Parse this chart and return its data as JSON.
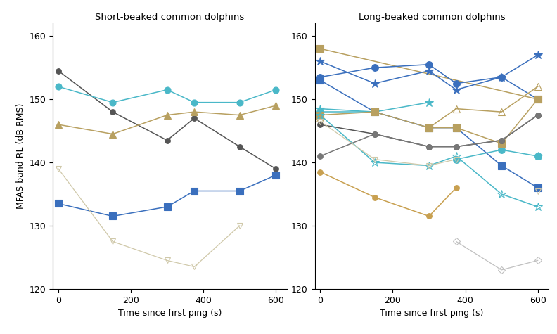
{
  "left_title": "Short-beaked common dolphins",
  "right_title": "Long-beaked common dolphins",
  "xlabel": "Time since first ping (s)",
  "ylabel": "MFAS band RL (dB RMS)",
  "ylim": [
    120,
    162
  ],
  "yticks": [
    120,
    130,
    140,
    150,
    160
  ],
  "xlim": [
    -15,
    630
  ],
  "xticks": [
    0,
    200,
    400,
    600
  ],
  "left_series": [
    {
      "x": [
        0,
        150,
        300,
        375,
        500,
        600
      ],
      "y": [
        154.5,
        148.0,
        143.5,
        147.0,
        142.5,
        139.0
      ],
      "color": "#555555",
      "marker": "o",
      "markersize": 5.5,
      "linewidth": 1.1
    },
    {
      "x": [
        0,
        150,
        300,
        375,
        500,
        600
      ],
      "y": [
        152.0,
        149.5,
        151.5,
        149.5,
        149.5,
        151.5
      ],
      "color": "#4ab8c8",
      "marker": "o",
      "markersize": 6.5,
      "linewidth": 1.1
    },
    {
      "x": [
        0,
        150,
        300,
        375,
        500,
        600
      ],
      "y": [
        146.0,
        144.5,
        147.5,
        148.0,
        147.5,
        149.0
      ],
      "color": "#b8a060",
      "marker": "^",
      "markersize": 6.5,
      "linewidth": 1.1
    },
    {
      "x": [
        0,
        150,
        300,
        375,
        500,
        600
      ],
      "y": [
        133.5,
        131.5,
        133.0,
        135.5,
        135.5,
        138.0
      ],
      "color": "#3a6fbd",
      "marker": "s",
      "markersize": 6.5,
      "linewidth": 1.1,
      "filled": true
    },
    {
      "x": [
        0,
        150,
        300,
        375,
        500,
        600
      ],
      "y": [
        139.0,
        127.5,
        124.5,
        123.5,
        130.0,
        null
      ],
      "color": "#d0c9aa",
      "marker": "v",
      "markersize": 5.5,
      "linewidth": 0.9,
      "filled": false
    }
  ],
  "right_series": [
    {
      "x": [
        0,
        600
      ],
      "y": [
        158.0,
        150.0
      ],
      "color": "#b8a060",
      "marker": "s",
      "markersize": 6.5,
      "linewidth": 1.1,
      "filled": true
    },
    {
      "x": [
        0,
        150,
        300,
        375,
        500,
        600
      ],
      "y": [
        156.0,
        152.5,
        154.5,
        151.5,
        153.5,
        157.0
      ],
      "color": "#3a6fbd",
      "marker": "*",
      "markersize": 9,
      "linewidth": 1.1,
      "filled": true
    },
    {
      "x": [
        0,
        150,
        300,
        375,
        500,
        600
      ],
      "y": [
        153.5,
        155.0,
        155.5,
        152.5,
        153.5,
        150.0
      ],
      "color": "#3a6fbd",
      "marker": "o",
      "markersize": 7,
      "linewidth": 1.1,
      "filled": true
    },
    {
      "x": [
        0,
        150,
        300,
        375,
        500,
        600
      ],
      "y": [
        153.0,
        148.0,
        145.5,
        145.5,
        139.5,
        136.0
      ],
      "color": "#3a6fbd",
      "marker": "s",
      "markersize": 6.5,
      "linewidth": 1.1,
      "filled": true
    },
    {
      "x": [
        0,
        150,
        300,
        375,
        500,
        600
      ],
      "y": [
        148.5,
        148.0,
        149.5,
        null,
        null,
        141.0
      ],
      "color": "#4ab8c8",
      "marker": "*",
      "markersize": 9,
      "linewidth": 1.1,
      "filled": true
    },
    {
      "x": [
        0,
        150,
        300,
        375,
        500,
        600
      ],
      "y": [
        148.0,
        148.0,
        null,
        140.5,
        142.0,
        141.0
      ],
      "color": "#4ab8c8",
      "marker": "o",
      "markersize": 7,
      "linewidth": 1.1,
      "filled": true
    },
    {
      "x": [
        0,
        150,
        300,
        375,
        500,
        600
      ],
      "y": [
        147.5,
        148.0,
        145.5,
        145.5,
        143.0,
        150.0
      ],
      "color": "#b8a060",
      "marker": "s",
      "markersize": 6.5,
      "linewidth": 1.1,
      "filled": true
    },
    {
      "x": [
        0,
        150,
        300,
        375,
        500,
        600
      ],
      "y": [
        147.0,
        null,
        145.5,
        148.5,
        148.0,
        152.0
      ],
      "color": "#b8a060",
      "marker": "^",
      "markersize": 6.5,
      "linewidth": 1.1,
      "filled": false
    },
    {
      "x": [
        0,
        150,
        300,
        375,
        500,
        600
      ],
      "y": [
        146.0,
        144.5,
        142.5,
        142.5,
        143.5,
        147.5
      ],
      "color": "#555555",
      "marker": "o",
      "markersize": 5.5,
      "linewidth": 1.1,
      "filled": true
    },
    {
      "x": [
        0,
        150,
        300,
        375,
        500,
        600
      ],
      "y": [
        141.0,
        144.5,
        142.5,
        142.5,
        143.5,
        147.5
      ],
      "color": "#777777",
      "marker": "o",
      "markersize": 5.5,
      "linewidth": 1.1,
      "filled": true
    },
    {
      "x": [
        0,
        150,
        300,
        375
      ],
      "y": [
        138.5,
        134.5,
        131.5,
        136.0
      ],
      "color": "#c8a050",
      "marker": "o",
      "markersize": 5.5,
      "linewidth": 1.1,
      "filled": true
    },
    {
      "x": [
        0,
        150,
        300,
        375,
        500,
        600
      ],
      "y": [
        147.5,
        140.0,
        139.5,
        141.0,
        135.0,
        133.0
      ],
      "color": "#4ab8c8",
      "marker": "*",
      "markersize": 9,
      "linewidth": 1.1,
      "filled": false
    },
    {
      "x": [
        0,
        150,
        300,
        375,
        500,
        600
      ],
      "y": [
        146.5,
        140.5,
        139.5,
        140.5,
        null,
        135.5
      ],
      "color": "#d0c9aa",
      "marker": "v",
      "markersize": 5.5,
      "linewidth": 0.9,
      "filled": false
    },
    {
      "x": [
        375,
        500,
        600
      ],
      "y": [
        127.5,
        123.0,
        124.5
      ],
      "color": "#c0c0c0",
      "marker": "D",
      "markersize": 5.5,
      "linewidth": 0.9,
      "filled": false
    }
  ]
}
